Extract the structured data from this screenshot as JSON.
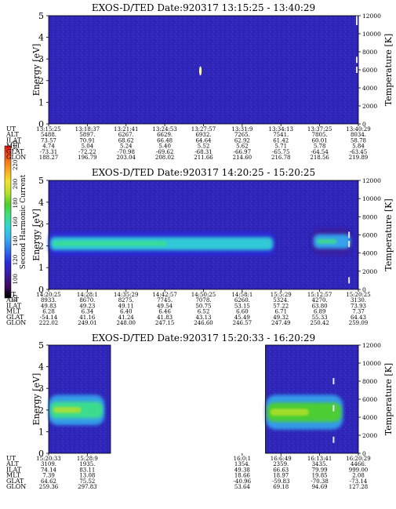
{
  "chart_data": [
    {
      "type": "heatmap",
      "title": "EXOS-D/TED   Date:920317   13:15:25 - 13:40:29",
      "ylabel": "Energy [eV]",
      "y2label": "Temperature [K]",
      "ylim": [
        0,
        5
      ],
      "y2lim": [
        0,
        12000
      ],
      "yticks": [
        "0",
        "1",
        "2",
        "3",
        "4",
        "5"
      ],
      "y2ticks": [
        "0",
        "2000",
        "4000",
        "6000",
        "8000",
        "10000",
        "12000"
      ],
      "ephemeris": {
        "labels": [
          "UT",
          "ALT",
          "ILAT",
          "MLT",
          "GLAT",
          "GLON"
        ],
        "columns": [
          [
            "13:15:25",
            "5488.",
            "73.57",
            "4.74",
            "-73.31",
            "188.27"
          ],
          [
            "13:18:37",
            "5897.",
            "70.91",
            "5.04",
            "-72.22",
            "196.79"
          ],
          [
            "13:21:41",
            "6267.",
            "68.62",
            "5.24",
            "-70.98",
            "203.04"
          ],
          [
            "13:24:53",
            "6629.",
            "66.48",
            "5.40",
            "-69.62",
            "208.02"
          ],
          [
            "13:27:57",
            "6932.",
            "64.64",
            "5.52",
            "-68.31",
            "211.66"
          ],
          [
            "13:31:9",
            "7265.",
            "62.92",
            "5.62",
            "-66.97",
            "214.60"
          ],
          [
            "13:34:13",
            "7541.",
            "61.42",
            "5.71",
            "-65.75",
            "216.78"
          ],
          [
            "13:37:25",
            "7805.",
            "60.01",
            "5.78",
            "-64.54",
            "218.56"
          ],
          [
            "13:40:29",
            "8034.",
            "58.78",
            "5.84",
            "-63.45",
            "219.89"
          ]
        ]
      },
      "features": [
        {
          "kind": "spot",
          "x_fraction": 0.49,
          "y_ev": 2.45,
          "intensity": 240
        },
        {
          "kind": "temperature_trace",
          "x_fraction": 0.995,
          "y2_k": [
            11300,
            11700,
            7100,
            6000,
            6000
          ]
        }
      ]
    },
    {
      "type": "heatmap",
      "title": "EXOS-D/TED   Date:920317   14:20:25 - 15:20:25",
      "ylabel": "Energy [eV]",
      "y2label": "Temperature [K]",
      "ylim": [
        0,
        5
      ],
      "y2lim": [
        0,
        12000
      ],
      "yticks": [
        "0",
        "1",
        "2",
        "3",
        "4",
        "5"
      ],
      "y2ticks": [
        "0",
        "2000",
        "4000",
        "6000",
        "8000",
        "10000",
        "12000"
      ],
      "ephemeris": {
        "labels": [
          "UT",
          "ALT",
          "ILAT",
          "MLT",
          "GLAT",
          "GLON"
        ],
        "columns": [
          [
            "14:20:25",
            "8933.",
            "49.83",
            "6.28",
            "-54.14",
            "222.02"
          ],
          [
            "14:28:1",
            "8670.",
            "49.23",
            "6.34",
            "41.16",
            "249.01"
          ],
          [
            "14:35:29",
            "8275.",
            "49.11",
            "6.40",
            "41.24",
            "248.00"
          ],
          [
            "14:42:57",
            "7745.",
            "49.54",
            "6.46",
            "41.83",
            "247.15"
          ],
          [
            "14:50:25",
            "7078.",
            "50.75",
            "6.52",
            "43.13",
            "246.60"
          ],
          [
            "14:58:1",
            "6260.",
            "53.15",
            "6.60",
            "45.49",
            "246.57"
          ],
          [
            "15:5:29",
            "5324.",
            "57.22",
            "6.71",
            "49.32",
            "247.49"
          ],
          [
            "15:12:57",
            "4270.",
            "63.80",
            "6.89",
            "55.33",
            "250.42"
          ],
          [
            "15:20:25",
            "3130.",
            "73.93",
            "7.37",
            "64.43",
            "259.09"
          ]
        ]
      },
      "features": [
        {
          "kind": "band",
          "x_start_fraction": 0.0,
          "x_end_fraction": 0.73,
          "y_ev_center": 2.1,
          "y_ev_halfwidth": 0.55,
          "intensity": 150
        },
        {
          "kind": "band",
          "x_start_fraction": 0.85,
          "x_end_fraction": 0.98,
          "y_ev_center": 2.2,
          "y_ev_halfwidth": 0.6,
          "intensity": 140
        },
        {
          "kind": "temperature_trace",
          "x_fraction": 0.97,
          "y2_k": [
            1000,
            5000,
            6000
          ]
        }
      ]
    },
    {
      "type": "heatmap",
      "title": "EXOS-D/TED   Date:920317   15:20:33 - 16:20:29",
      "ylabel": "Energy [eV]",
      "y2label": "Temperature [K]",
      "ylim": [
        0,
        5
      ],
      "y2lim": [
        0,
        12000
      ],
      "yticks": [
        "0",
        "1",
        "2",
        "3",
        "4",
        "5"
      ],
      "y2ticks": [
        "0",
        "2000",
        "4000",
        "6000",
        "8000",
        "10000",
        "12000"
      ],
      "ephemeris": {
        "labels": [
          "UT",
          "ALT",
          "ILAT",
          "MLT",
          "GLAT",
          "GLON"
        ],
        "columns": [
          [
            "15:20:33",
            "3109.",
            "74.14",
            "7.39",
            "64.62",
            "259.36"
          ],
          [
            "15:28:9",
            "1935.",
            "83.11",
            "13.08",
            "75.52",
            "297.83"
          ],
          [
            "",
            "",
            "",
            "",
            "",
            ""
          ],
          [
            "",
            "",
            "",
            "",
            "",
            ""
          ],
          [
            "",
            "",
            "",
            "",
            "",
            ""
          ],
          [
            "16:0:1",
            "1354.",
            "49.38",
            "18.66",
            "-40.96",
            "53.64"
          ],
          [
            "16:6:49",
            "2359.",
            "66.63",
            "18.97",
            "-59.83",
            "69.18"
          ],
          [
            "16:13:41",
            "3435.",
            "79.99",
            "19.85",
            "-70.38",
            "94.69"
          ],
          [
            "16:20:29",
            "4466.",
            "999.00",
            "2.08",
            "-73.14",
            "127.28"
          ]
        ]
      },
      "data_segments": [
        {
          "x_start_fraction": 0.0,
          "x_end_fraction": 0.2
        },
        {
          "x_start_fraction": 0.7,
          "x_end_fraction": 1.0
        }
      ],
      "features": [
        {
          "kind": "band",
          "x_start_fraction": 0.0,
          "x_end_fraction": 0.18,
          "y_ev_center": 2.0,
          "y_ev_halfwidth": 0.7,
          "intensity": 170
        },
        {
          "kind": "band",
          "x_start_fraction": 0.7,
          "x_end_fraction": 0.95,
          "y_ev_center": 1.9,
          "y_ev_halfwidth": 0.8,
          "intensity": 175
        },
        {
          "kind": "temperature_trace",
          "x_fraction": 0.92,
          "y2_k": [
            1500,
            5000,
            8000
          ]
        }
      ]
    }
  ],
  "colorbar": {
    "label": "Second Harmonic Current",
    "min": 80,
    "max": 240,
    "ticks": [
      "80",
      "100",
      "120",
      "140",
      "160",
      "180",
      "200",
      "220",
      "240"
    ],
    "colors": [
      "#000000",
      "#3d0a5e",
      "#3a1a9a",
      "#2a2ad8",
      "#2f6be6",
      "#36a8f0",
      "#32d2d8",
      "#3ee08a",
      "#4ed02a",
      "#b8e02a",
      "#f2e22a",
      "#f7a21e",
      "#f26118",
      "#e31a1a"
    ]
  }
}
